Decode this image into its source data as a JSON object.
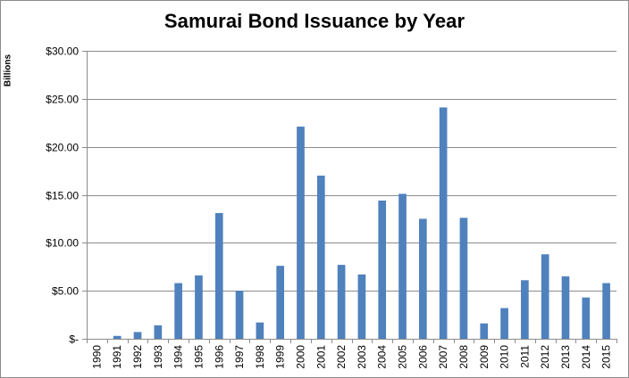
{
  "chart_data": {
    "type": "bar",
    "title": "Samurai Bond Issuance by Year",
    "xlabel": "",
    "ylabel": "Billions",
    "categories": [
      "1990",
      "1991",
      "1992",
      "1993",
      "1994",
      "1995",
      "1996",
      "1997",
      "1998",
      "1999",
      "2000",
      "2001",
      "2002",
      "2003",
      "2004",
      "2005",
      "2006",
      "2007",
      "2008",
      "2009",
      "2010",
      "2011",
      "2012",
      "2013",
      "2014",
      "2015"
    ],
    "values": [
      0.0,
      0.3,
      0.7,
      1.4,
      5.8,
      6.6,
      13.1,
      5.0,
      1.7,
      7.6,
      22.1,
      17.0,
      7.7,
      6.7,
      14.4,
      15.1,
      12.5,
      24.1,
      12.6,
      1.6,
      3.2,
      6.1,
      8.8,
      6.5,
      4.3,
      5.8
    ],
    "ylim": [
      0,
      30
    ],
    "ytick_labels": [
      "$-",
      "$5.00",
      "$10.00",
      "$15.00",
      "$20.00",
      "$25.00",
      "$30.00"
    ],
    "grid": true,
    "bar_color": "#4f81bd"
  }
}
